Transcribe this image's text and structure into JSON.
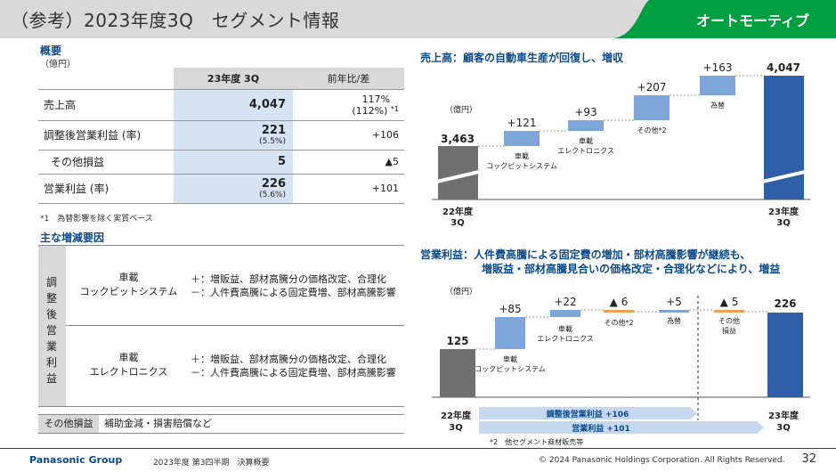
{
  "header": {
    "title": "（参考）2023年度3Q　セグメント情報",
    "segment": "オートモーティブ"
  },
  "colors": {
    "accent": "#0b4a8c",
    "green": "#00a040",
    "bar_gray": "#707070",
    "bar_light": "#7ea6d8",
    "bar_dark": "#2f5fa9"
  },
  "summary": {
    "title": "概要",
    "unit": "（億円）",
    "col_current": "23年度 3Q",
    "col_yoy": "前年比/差",
    "rows": [
      {
        "label": "売上高",
        "value": "4,047",
        "sub": "",
        "yoy": "117%",
        "yoy2": "(112%)",
        "note": "*1"
      },
      {
        "label": "調整後営業利益 (率)",
        "value": "221",
        "sub": "(5.5%)",
        "yoy": "+106",
        "yoy2": "",
        "note": ""
      },
      {
        "label": "その他損益",
        "value": "5",
        "sub": "",
        "yoy": "▲5",
        "yoy2": "",
        "note": ""
      },
      {
        "label": "営業利益 (率)",
        "value": "226",
        "sub": "(5.6%)",
        "yoy": "+101",
        "yoy2": "",
        "note": ""
      }
    ],
    "footnote": "*1　為替影響を除く実質ベース"
  },
  "factors": {
    "title": "主な増減要因",
    "side_label": "調整後営業利益",
    "side_chars": [
      "調",
      "整",
      "後",
      "営",
      "業",
      "利",
      "益"
    ],
    "rows": [
      {
        "name1": "車載",
        "name2": "コックピットシステム",
        "plus": "＋：増販益、部材高騰分の価格改定、合理化",
        "minus": "－：人件費高騰による固定費増、部材高騰影響"
      },
      {
        "name1": "車載",
        "name2": "エレクトロニクス",
        "plus": "＋：増販益、部材高騰分の価格改定、合理化",
        "minus": "－：人件費高騰による固定費増、部材高騰影響"
      }
    ],
    "other_label": "その他損益",
    "other_text": "補助金減・損害賠償など"
  },
  "sales_chart": {
    "title": "売上高：顧客の自動車生産が回復し、増収",
    "unit": "（億円）",
    "start_value": "3,463",
    "start_label1": "22年度",
    "start_label2": "3Q",
    "end_value": "4,047",
    "end_label1": "23年度",
    "end_label2": "3Q",
    "steps": [
      {
        "delta": "+121",
        "name1": "車載",
        "name2": "コックピットシステム"
      },
      {
        "delta": "+93",
        "name1": "車載",
        "name2": "エレクトロニクス"
      },
      {
        "delta": "+207",
        "name1": "その他*2",
        "name2": ""
      },
      {
        "delta": "+163",
        "name1": "為替",
        "name2": ""
      }
    ]
  },
  "chart_data": [
    {
      "type": "bar",
      "title": "売上高：顧客の自動車生産が回復し、増収",
      "categories": [
        "22年度 3Q",
        "車載 コックピットシステム",
        "車載 エレクトロニクス",
        "その他",
        "為替",
        "23年度 3Q"
      ],
      "values": [
        3463,
        121,
        93,
        207,
        163,
        4047
      ],
      "ylabel": "（億円）"
    },
    {
      "type": "bar",
      "title": "営業利益：人件費高騰による固定費の増加・部材高騰影響が継続も、増販益・部材高騰見合いの価格改定・合理化などにより、増益",
      "categories": [
        "22年度 3Q",
        "車載 コックピットシステム",
        "車載 エレクトロニクス",
        "その他",
        "為替",
        "その他損益",
        "23年度 3Q"
      ],
      "values": [
        125,
        85,
        22,
        -6,
        5,
        -5,
        226
      ],
      "ylabel": "（億円）"
    }
  ],
  "profit_chart": {
    "title_line1": "営業利益：人件費高騰による固定費の増加・部材高騰影響が継続も、",
    "title_line2": "増販益・部材高騰見合いの価格改定・合理化などにより、増益",
    "unit": "（億円）",
    "start_value": "125",
    "start_label1": "22年度",
    "start_label2": "3Q",
    "end_value": "226",
    "end_label1": "23年度",
    "end_label2": "3Q",
    "steps": [
      {
        "delta": "+85",
        "name1": "車載",
        "name2": "コックピットシステム"
      },
      {
        "delta": "+22",
        "name1": "車載",
        "name2": "エレクトロニクス"
      },
      {
        "delta": "▲ 6",
        "name1": "その他*2",
        "name2": ""
      },
      {
        "delta": "+5",
        "name1": "為替",
        "name2": ""
      },
      {
        "delta": "▲ 5",
        "name1": "その他",
        "name2": "損益"
      }
    ],
    "arrow1": "調整後営業利益  +106",
    "arrow2": "営業利益  +101",
    "footnote": "*2　他セグメント商材販売等"
  },
  "footer": {
    "brand": "Panasonic Group",
    "doc": "2023年度 第3四半期　決算概要",
    "copyright": "© 2024 Panasonic Holdings Corporation. All Rights Reserved.",
    "page": "32"
  }
}
